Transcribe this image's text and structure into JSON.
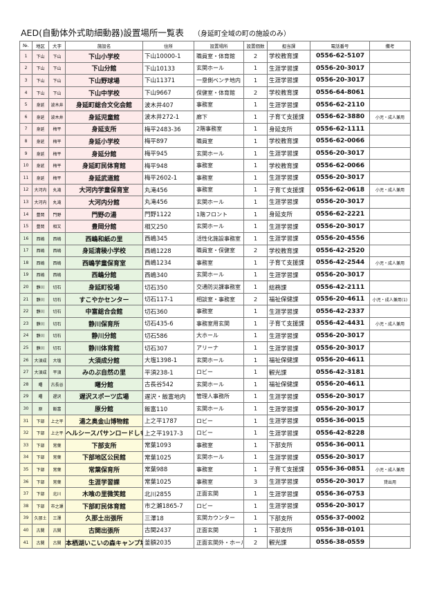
{
  "title": "AED(自動体外式助細動器)設置場所一覧表",
  "subtitle": "（身延町全域の町の施設のみ）",
  "table": {
    "headers": [
      "№.",
      "地区",
      "大字",
      "施設名",
      "住所",
      "設置場所",
      "設置個数",
      "担当課",
      "電話番号",
      "備考"
    ],
    "rows": [
      {
        "no": 1,
        "district": "下山",
        "area": "下山",
        "facility": "下山小学校",
        "address": "下山10000-1",
        "place": "職員室・体育館",
        "count": 2,
        "dept": "学校教育課",
        "phone": "0556-62-5107"
      },
      {
        "no": 2,
        "district": "下山",
        "area": "下山",
        "facility": "下山分館",
        "address": "下山10133",
        "place": "玄関ホール",
        "count": 1,
        "dept": "生涯学習課",
        "phone": "0556-20-3017"
      },
      {
        "no": 3,
        "district": "下山",
        "area": "下山",
        "facility": "下山野球場",
        "address": "下山11371",
        "place": "一塁側ベンチ地内",
        "count": 1,
        "dept": "生涯学習課",
        "phone": "0556-20-3017"
      },
      {
        "no": 4,
        "district": "下山",
        "area": "下山",
        "facility": "下山中学校",
        "address": "下山9667",
        "place": "保健室・体育館",
        "count": 2,
        "dept": "学校教育課",
        "phone": "0556-64-8061"
      },
      {
        "no": 5,
        "district": "身延",
        "area": "波木井",
        "facility": "身延町総合文化会館",
        "address": "波木井407",
        "place": "事務室",
        "count": 1,
        "dept": "生涯学習課",
        "phone": "0556-62-2110"
      },
      {
        "no": 6,
        "district": "身延",
        "area": "波木井",
        "facility": "身延児童館",
        "address": "波木井272-1",
        "place": "廊下",
        "count": 1,
        "dept": "子育て支援課",
        "phone": "0556-62-3880",
        "note": "小児・成人兼用"
      },
      {
        "no": 7,
        "district": "身延",
        "area": "梅平",
        "facility": "身延支所",
        "address": "梅平2483-36",
        "place": "2階事務室",
        "count": 1,
        "dept": "身延支所",
        "phone": "0556-62-1111"
      },
      {
        "no": 8,
        "district": "身延",
        "area": "梅平",
        "facility": "身延小学校",
        "address": "梅平897",
        "place": "職員室",
        "count": 1,
        "dept": "学校教育課",
        "phone": "0556-62-0066"
      },
      {
        "no": 9,
        "district": "身延",
        "area": "梅平",
        "facility": "身延分館",
        "address": "梅平945",
        "place": "玄関ホール",
        "count": 1,
        "dept": "生涯学習課",
        "phone": "0556-20-3017"
      },
      {
        "no": 10,
        "district": "身延",
        "area": "梅平",
        "facility": "身延町民体育館",
        "address": "梅平948",
        "place": "事務室",
        "count": 1,
        "dept": "学校教育課",
        "phone": "0556-62-0066"
      },
      {
        "no": 11,
        "district": "身延",
        "area": "梅平",
        "facility": "身延武道館",
        "address": "梅平2602-1",
        "place": "事務室",
        "count": 1,
        "dept": "生涯学習課",
        "phone": "0556-20-3017"
      },
      {
        "no": 12,
        "district": "大河内",
        "area": "丸滝",
        "facility": "大河内学童保育室",
        "address": "丸滝456",
        "place": "事務室",
        "count": 1,
        "dept": "子育て支援課",
        "phone": "0556-62-0618",
        "note": "小児・成人兼用"
      },
      {
        "no": 13,
        "district": "大河内",
        "area": "丸滝",
        "facility": "大河内分館",
        "address": "丸滝456",
        "place": "玄関ホール",
        "count": 1,
        "dept": "生涯学習課",
        "phone": "0556-20-3017"
      },
      {
        "no": 14,
        "district": "豊岡",
        "area": "門野",
        "facility": "門野の湯",
        "address": "門野1122",
        "place": "1階フロント",
        "count": 1,
        "dept": "身延支所",
        "phone": "0556-62-2221"
      },
      {
        "no": 15,
        "district": "豊岡",
        "area": "相又",
        "facility": "豊岡分館",
        "address": "相又250",
        "place": "玄関ホール",
        "count": 1,
        "dept": "生涯学習課",
        "phone": "0556-20-3017"
      },
      {
        "no": 16,
        "district": "西嶋",
        "area": "西嶋",
        "facility": "西嶋和紙の里",
        "address": "西嶋345",
        "place": "活性化施設事務室",
        "count": 1,
        "dept": "生涯学習課",
        "phone": "0556-20-4556"
      },
      {
        "no": 17,
        "district": "西嶋",
        "area": "西嶋",
        "facility": "身延清稜小学校",
        "address": "西嶋1228",
        "place": "職員室・保健室",
        "count": 2,
        "dept": "学校教育課",
        "phone": "0556-42-2520"
      },
      {
        "no": 18,
        "district": "西嶋",
        "area": "西嶋",
        "facility": "西嶋学童保育室",
        "address": "西嶋1234",
        "place": "事務室",
        "count": 1,
        "dept": "子育て支援課",
        "phone": "0556-42-2544",
        "note": "小児・成人兼用"
      },
      {
        "no": 19,
        "district": "西嶋",
        "area": "西嶋",
        "facility": "西嶋分館",
        "address": "西嶋340",
        "place": "玄関ホール",
        "count": 1,
        "dept": "生涯学習課",
        "phone": "0556-20-3017"
      },
      {
        "no": 20,
        "district": "静川",
        "area": "切石",
        "facility": "身延町役場",
        "address": "切石350",
        "place": "交通防災課事務室",
        "count": 1,
        "dept": "総務課",
        "phone": "0556-42-2111"
      },
      {
        "no": 21,
        "district": "静川",
        "area": "切石",
        "facility": "すこやかセンター",
        "address": "切石117-1",
        "place": "相談室・事務室",
        "count": 2,
        "dept": "福祉保健課",
        "phone": "0556-20-4611",
        "note": "小児・成人兼用(1)"
      },
      {
        "no": 22,
        "district": "静川",
        "area": "切石",
        "facility": "中富総合会館",
        "address": "切石360",
        "place": "事務室",
        "count": 1,
        "dept": "生涯学習課",
        "phone": "0556-42-2337"
      },
      {
        "no": 23,
        "district": "静川",
        "area": "切石",
        "facility": "静川保育所",
        "address": "切石435-6",
        "place": "事務室用玄関",
        "count": 1,
        "dept": "子育て支援課",
        "phone": "0556-42-4431",
        "note": "小児・成人兼用"
      },
      {
        "no": 24,
        "district": "静川",
        "area": "切石",
        "facility": "静川分館",
        "address": "切石586",
        "place": "大ホール",
        "count": 1,
        "dept": "生涯学習課",
        "phone": "0556-20-3017"
      },
      {
        "no": 25,
        "district": "静川",
        "area": "切石",
        "facility": "静川体育館",
        "address": "切石307",
        "place": "アリーナ",
        "count": 1,
        "dept": "生涯学習課",
        "phone": "0556-20-3017"
      },
      {
        "no": 26,
        "district": "大須成",
        "area": "大塩",
        "facility": "大須成分館",
        "address": "大塩1398-1",
        "place": "玄関ホール",
        "count": 1,
        "dept": "福祉保健課",
        "phone": "0556-20-4611"
      },
      {
        "no": 27,
        "district": "大須成",
        "area": "平須",
        "facility": "みのぶ自然の里",
        "address": "平須238-1",
        "place": "ロビー",
        "count": 1,
        "dept": "観光課",
        "phone": "0556-42-3181"
      },
      {
        "no": 28,
        "district": "曙",
        "area": "古長谷",
        "facility": "曙分館",
        "address": "古長谷542",
        "place": "玄関ホール",
        "count": 1,
        "dept": "福祉保健課",
        "phone": "0556-20-4611"
      },
      {
        "no": 29,
        "district": "曙",
        "area": "遅沢",
        "facility": "遅沢スポーツ広場",
        "address": "遅沢・飯富地内",
        "place": "管理人事務所",
        "count": 1,
        "dept": "生涯学習課",
        "phone": "0556-20-3017"
      },
      {
        "no": 30,
        "district": "原",
        "area": "飯富",
        "facility": "原分館",
        "address": "飯富110",
        "place": "玄関ホール",
        "count": 1,
        "dept": "生涯学習課",
        "phone": "0556-20-3017"
      },
      {
        "no": 31,
        "district": "下部",
        "area": "上之平",
        "facility": "湯之奥金山博物館",
        "address": "上之平1787",
        "place": "ロビー",
        "count": 1,
        "dept": "生涯学習課",
        "phone": "0556-36-0015"
      },
      {
        "no": 32,
        "district": "下部",
        "area": "上之平",
        "facility": "ヘルシースパサンロードしもべの湯",
        "address": "上之平1917-3",
        "place": "ロビー",
        "count": 1,
        "dept": "生涯学習課",
        "phone": "0556-42-8228"
      },
      {
        "no": 33,
        "district": "下部",
        "area": "常葉",
        "facility": "下部支所",
        "address": "常葉1093",
        "place": "事務室",
        "count": 1,
        "dept": "下部支所",
        "phone": "0556-36-0011"
      },
      {
        "no": 34,
        "district": "下部",
        "area": "常葉",
        "facility": "下部地区公民館",
        "address": "常葉1025",
        "place": "玄関ホール",
        "count": 1,
        "dept": "生涯学習課",
        "phone": "0556-20-3017"
      },
      {
        "no": 35,
        "district": "下部",
        "area": "常葉",
        "facility": "常葉保育所",
        "address": "常葉988",
        "place": "事務室",
        "count": 1,
        "dept": "子育て支援課",
        "phone": "0556-36-0851",
        "note": "小児・成人兼用"
      },
      {
        "no": 36,
        "district": "下部",
        "area": "常葉",
        "facility": "生涯学習課",
        "address": "常葉1025",
        "place": "事務室",
        "count": 3,
        "dept": "生涯学習課",
        "phone": "0556-20-3017",
        "note": "貸出用"
      },
      {
        "no": 37,
        "district": "下部",
        "area": "北川",
        "facility": "木喰の里微笑館",
        "address": "北川2855",
        "place": "正面玄関",
        "count": 1,
        "dept": "生涯学習課",
        "phone": "0556-36-0753"
      },
      {
        "no": 38,
        "district": "下部",
        "area": "市之瀬",
        "facility": "下部町民体育館",
        "address": "市之瀬1865-7",
        "place": "ロビー",
        "count": 1,
        "dept": "生涯学習課",
        "phone": "0556-20-3017"
      },
      {
        "no": 39,
        "district": "久那土",
        "area": "三澤",
        "facility": "久那土出張所",
        "address": "三澤18",
        "place": "玄関カウンター",
        "count": 1,
        "dept": "下部支所",
        "phone": "0556-37-0002"
      },
      {
        "no": 40,
        "district": "古関",
        "area": "古関",
        "facility": "古関出張所",
        "address": "古関2437",
        "place": "正面玄関",
        "count": 1,
        "dept": "下部支所",
        "phone": "0556-38-0101"
      },
      {
        "no": 41,
        "district": "古関",
        "area": "古関",
        "facility": "本栖湖いこいの森キャンプ場",
        "address": "釜額2035",
        "place": "正面玄関外・ホール",
        "count": 2,
        "dept": "観光課",
        "phone": "0556-38-0559"
      }
    ]
  }
}
